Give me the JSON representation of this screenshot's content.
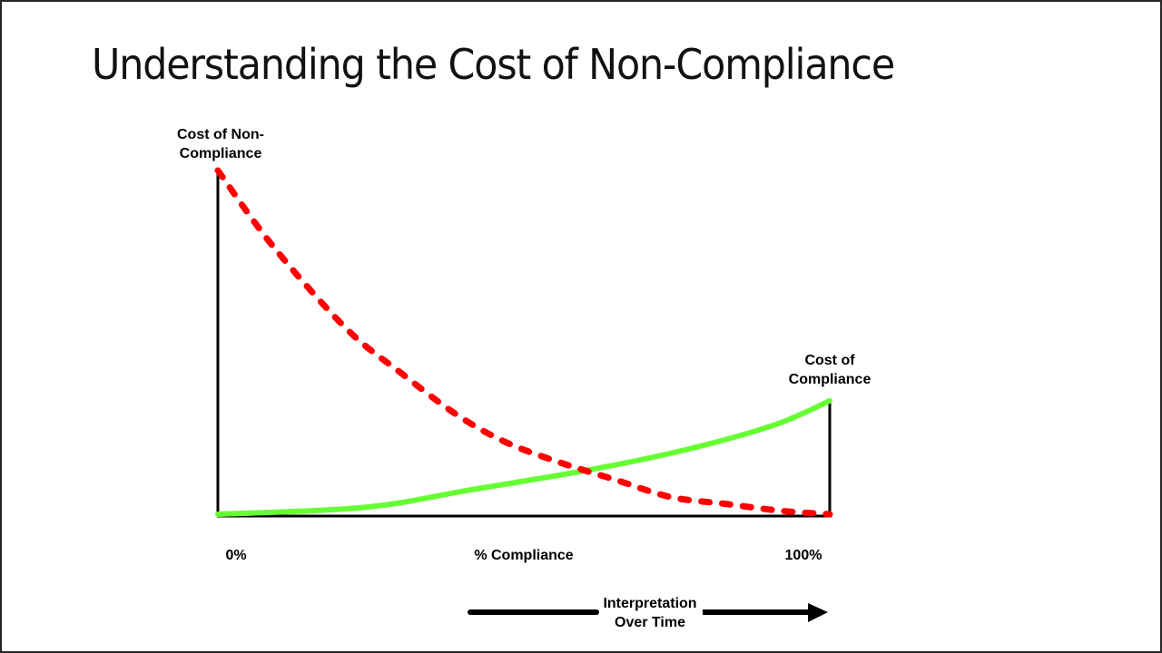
{
  "slide": {
    "title": "Understanding the Cost of Non-Compliance",
    "border_color": "#262626"
  },
  "chart_data": {
    "type": "line",
    "title": "Understanding the Cost of Non-Compliance",
    "xlabel": "% Compliance",
    "ylabel": "",
    "x_tick_labels": [
      "0%",
      "100%"
    ],
    "x": [
      0,
      10,
      20,
      30,
      40,
      50,
      60,
      70,
      80,
      90,
      100
    ],
    "xlim": [
      0,
      100
    ],
    "ylim": [
      0,
      100
    ],
    "grid": false,
    "legend": "none (series labeled directly at curve endpoints)",
    "series": [
      {
        "name": "Cost of Non-Compliance",
        "style": "dashed",
        "color": "#ff0000",
        "x": [
          0,
          9,
          21,
          30,
          39,
          47,
          56,
          65,
          74,
          83,
          92,
          100
        ],
        "values": [
          100,
          78,
          54,
          41,
          29,
          21,
          15,
          10,
          5,
          3,
          1,
          0
        ]
      },
      {
        "name": "Cost of Compliance",
        "style": "solid",
        "color": "#66ff33",
        "x": [
          0,
          24,
          41,
          61,
          77,
          91,
          100
        ],
        "values": [
          0,
          2,
          7,
          13,
          19,
          26,
          33
        ]
      }
    ],
    "annotations": [
      {
        "text": "Cost of Non-Compliance",
        "position": "top of left axis"
      },
      {
        "text": "Cost of Compliance",
        "position": "top of right axis"
      },
      {
        "text": "Interpretation Over Time",
        "position": "below x-axis, on right-pointing arrow"
      }
    ]
  },
  "labels": {
    "noncompliance_line1": "Cost of Non-",
    "noncompliance_line2": "Compliance",
    "compliance_line1": "Cost of",
    "compliance_line2": "Compliance",
    "x_min": "0%",
    "x_mid": "% Compliance",
    "x_max": "100%",
    "arrow_line1": "Interpretation",
    "arrow_line2": "Over Time"
  },
  "colors": {
    "noncompliance": "#ff0000",
    "compliance": "#66ff33",
    "axis": "#000000"
  }
}
